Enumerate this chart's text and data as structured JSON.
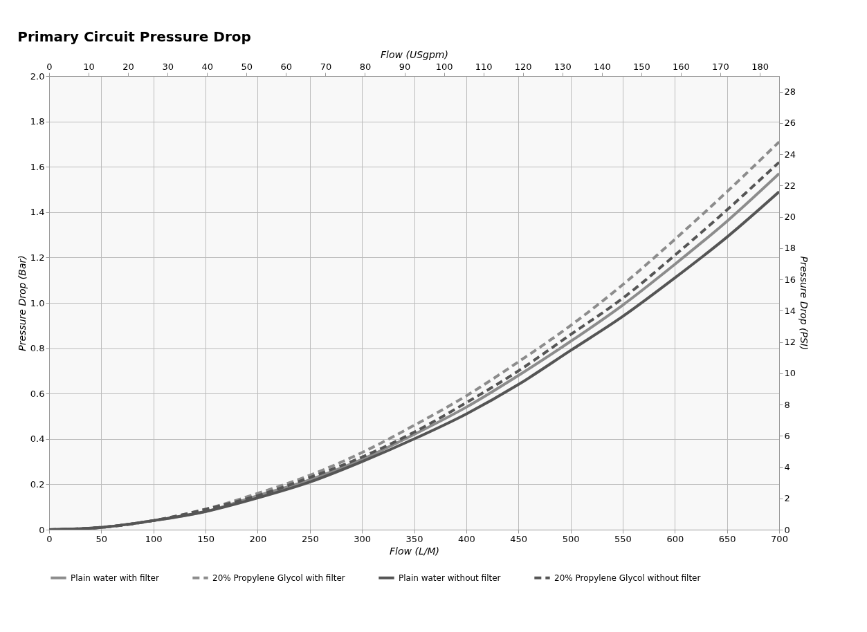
{
  "chart_data": {
    "type": "line",
    "title": "Primary Circuit Pressure Drop",
    "xlabel": "Flow (L/M)",
    "ylabel": "Pressure Drop (Bar)",
    "x2label": "Flow (USgpm)",
    "y2label": "Pressure Drop (PSI)",
    "x": [
      0,
      50,
      100,
      150,
      200,
      250,
      300,
      350,
      400,
      450,
      500,
      550,
      600,
      650,
      700
    ],
    "xlim": [
      0,
      700
    ],
    "xticks": [
      0,
      50,
      100,
      150,
      200,
      250,
      300,
      350,
      400,
      450,
      500,
      550,
      600,
      650,
      700
    ],
    "ylim": [
      0,
      2
    ],
    "yticks": [
      0,
      {
        "value": 0.2,
        "label": "0.2"
      },
      {
        "value": 0.4,
        "label": "0.4"
      },
      {
        "value": 0.6,
        "label": "0.6"
      },
      {
        "value": 0.8,
        "label": "0.8"
      },
      {
        "value": 1,
        "label": "1.0"
      },
      {
        "value": 1.2,
        "label": "1.2"
      },
      {
        "value": 1.4,
        "label": "1.4"
      },
      {
        "value": 1.6,
        "label": "1.6"
      },
      {
        "value": 1.8,
        "label": "1.8"
      },
      {
        "value": 2,
        "label": "2.0"
      }
    ],
    "x2lim": [
      0,
      184.9
    ],
    "x2ticks": [
      0,
      10,
      20,
      30,
      40,
      50,
      60,
      70,
      80,
      90,
      100,
      110,
      120,
      130,
      140,
      150,
      160,
      170,
      180
    ],
    "y2lim": [
      0,
      29.0
    ],
    "y2ticks": [
      0,
      2,
      4,
      6,
      8,
      10,
      12,
      14,
      16,
      18,
      20,
      22,
      24,
      26,
      28
    ],
    "grid": true,
    "legend": "bottom",
    "series": [
      {
        "name": "Plain water with filter",
        "color": "#8c8c8c",
        "line_style": "solid",
        "values": [
          0,
          0.01,
          0.04,
          0.08,
          0.15,
          0.22,
          0.31,
          0.42,
          0.54,
          0.68,
          0.83,
          0.99,
          1.17,
          1.36,
          1.57
        ]
      },
      {
        "name": "20% Propylene Glycol with filter",
        "color": "#8c8c8c",
        "line_style": "dashed",
        "values": [
          0,
          0.01,
          0.04,
          0.09,
          0.16,
          0.24,
          0.34,
          0.46,
          0.59,
          0.74,
          0.9,
          1.08,
          1.28,
          1.49,
          1.71
        ]
      },
      {
        "name": "Plain water without filter",
        "color": "#555555",
        "line_style": "solid",
        "values": [
          0,
          0.01,
          0.04,
          0.08,
          0.14,
          0.21,
          0.3,
          0.4,
          0.51,
          0.64,
          0.79,
          0.94,
          1.11,
          1.29,
          1.49
        ]
      },
      {
        "name": "20% Propylene Glycol without filter",
        "color": "#555555",
        "line_style": "dashed",
        "values": [
          0,
          0.01,
          0.04,
          0.09,
          0.15,
          0.23,
          0.32,
          0.43,
          0.56,
          0.7,
          0.86,
          1.02,
          1.21,
          1.41,
          1.62
        ]
      }
    ]
  }
}
